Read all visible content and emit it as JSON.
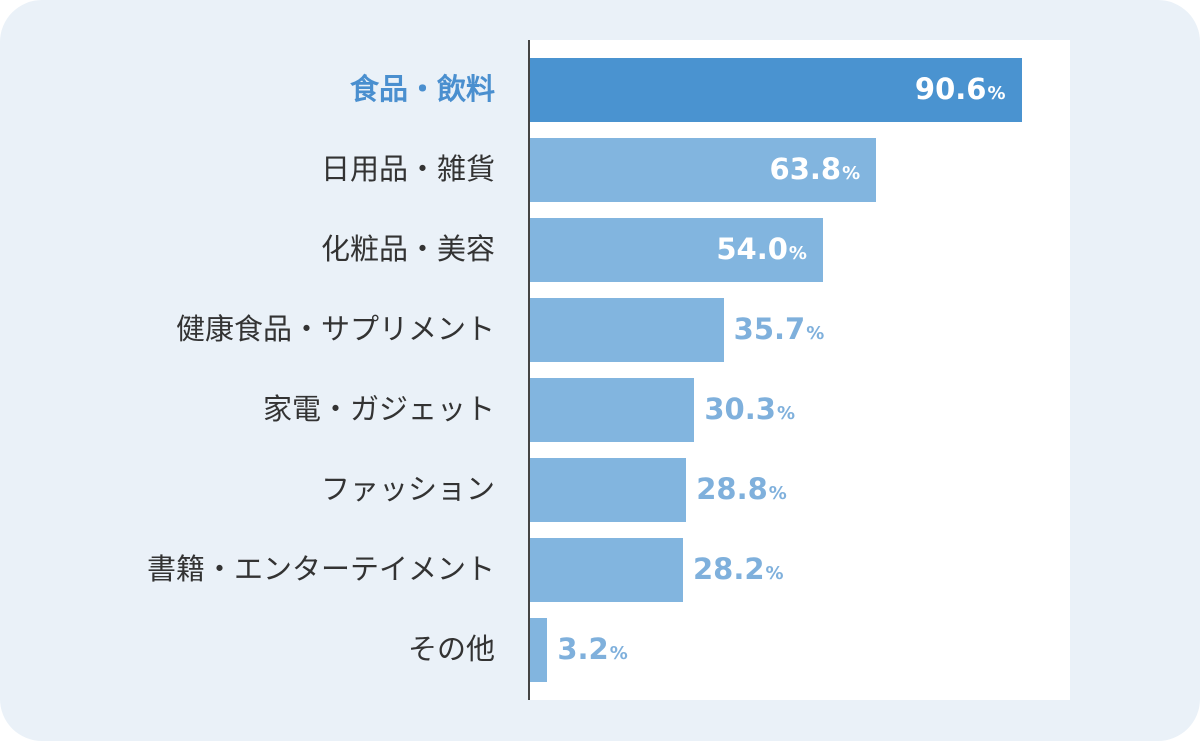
{
  "chart_data": {
    "type": "bar",
    "orientation": "horizontal",
    "categories": [
      "食品・飲料",
      "日用品・雑貨",
      "化粧品・美容",
      "健康食品・サプリメント",
      "家電・ガジェット",
      "ファッション",
      "書籍・エンターテイメント",
      "その他"
    ],
    "values": [
      90.6,
      63.8,
      54.0,
      35.7,
      30.3,
      28.8,
      28.2,
      3.2
    ],
    "value_labels": [
      "90.6",
      "63.8",
      "54.0",
      "35.7",
      "30.3",
      "28.8",
      "28.2",
      "3.2"
    ],
    "unit": "%",
    "xlim": [
      0,
      100
    ],
    "highlight_index": 0,
    "colors": {
      "highlight_bar": "#4a93d0",
      "bar": "#82b5df",
      "highlight_label": "#4a8fcf",
      "label": "#333333",
      "value_inside": "#ffffff",
      "value_outside": "#7fb0dc",
      "background": "#eaf1f8",
      "plot_background": "#ffffff"
    },
    "grid": false,
    "legend": "none"
  }
}
